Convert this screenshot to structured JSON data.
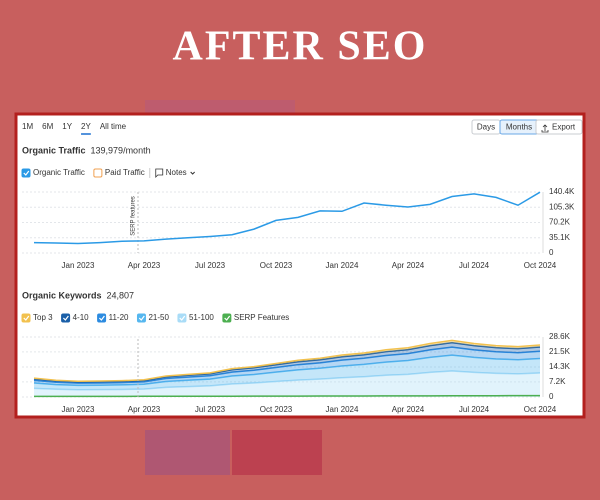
{
  "header": {
    "title": "AFTER SEO"
  },
  "toolbar": {
    "ranges": [
      "1M",
      "6M",
      "1Y",
      "2Y",
      "All time"
    ],
    "active_range": "2Y",
    "views": [
      "Days",
      "Months"
    ],
    "active_view": "Months",
    "export": "Export"
  },
  "chart_data": [
    {
      "type": "line",
      "title": "Organic Traffic",
      "total": "139,979/month",
      "categories": [
        null,
        null,
        "Jan 2023",
        null,
        null,
        "Apr 2023",
        null,
        null,
        "Jul 2023",
        null,
        null,
        "Oct 2023",
        null,
        null,
        "Jan 2024",
        null,
        null,
        "Apr 2024",
        null,
        null,
        "Jul 2024",
        null,
        null,
        "Oct 2024"
      ],
      "series": [
        {
          "name": "Organic Traffic",
          "color": "#2b9ae6",
          "values": [
            24000,
            23000,
            22000,
            24000,
            27000,
            28000,
            32000,
            35000,
            38000,
            42000,
            55000,
            75000,
            82000,
            97000,
            96000,
            115000,
            110000,
            106000,
            112000,
            130000,
            136000,
            128000,
            110000,
            139979
          ]
        }
      ],
      "toggles": [
        {
          "label": "Paid Traffic",
          "color": "#f0a050"
        }
      ],
      "notes": "Notes",
      "annotation": {
        "text": "SERP features",
        "category": "Apr 2023"
      },
      "ylim": [
        0,
        140400
      ],
      "yticks": [
        0,
        {
          "value": 35100,
          "label": "35.1K"
        },
        {
          "value": 70200,
          "label": "70.2K"
        },
        {
          "value": 105300,
          "label": "105.3K"
        },
        {
          "value": 140400,
          "label": "140.4K"
        }
      ],
      "grid": true
    },
    {
      "type": "area",
      "stacked": true,
      "title": "Organic Keywords",
      "total": "24,807",
      "categories": [
        null,
        null,
        "Jan 2023",
        null,
        null,
        "Apr 2023",
        null,
        null,
        "Jul 2023",
        null,
        null,
        "Oct 2023",
        null,
        null,
        "Jan 2024",
        null,
        null,
        "Apr 2024",
        null,
        null,
        "Jul 2024",
        null,
        null,
        "Oct 2024"
      ],
      "series": [
        {
          "name": "Top 3",
          "color": "#f2c14e",
          "values": [
            360,
            320,
            300,
            300,
            310,
            330,
            400,
            430,
            460,
            540,
            580,
            640,
            700,
            740,
            800,
            840,
            900,
            940,
            1020,
            1080,
            1020,
            980,
            960,
            992
          ]
        },
        {
          "name": "4-10",
          "color": "#1a5fa8",
          "values": [
            720,
            640,
            600,
            610,
            620,
            660,
            800,
            860,
            920,
            1080,
            1160,
            1280,
            1400,
            1480,
            1600,
            1680,
            1800,
            1880,
            2040,
            2160,
            2040,
            1960,
            1920,
            1985
          ]
        },
        {
          "name": "11-20",
          "color": "#2c8be0",
          "values": [
            1260,
            1120,
            1050,
            1060,
            1090,
            1150,
            1400,
            1510,
            1610,
            1890,
            2030,
            2240,
            2450,
            2590,
            2800,
            2940,
            3150,
            3290,
            3570,
            3780,
            3570,
            3430,
            3360,
            3473
          ]
        },
        {
          "name": "21-50",
          "color": "#56b7ef",
          "values": [
            2520,
            2240,
            2100,
            2130,
            2180,
            2300,
            2800,
            3020,
            3220,
            3780,
            4060,
            4480,
            4900,
            5180,
            5600,
            5880,
            6300,
            6580,
            7140,
            7560,
            7140,
            6860,
            6720,
            6946
          ]
        },
        {
          "name": "51-100",
          "color": "#a9dcf7",
          "values": [
            4140,
            3680,
            3450,
            3500,
            3590,
            3770,
            4600,
            4970,
            5290,
            6210,
            6670,
            7360,
            8050,
            8510,
            9200,
            9660,
            10350,
            10810,
            11730,
            12420,
            11730,
            11270,
            11040,
            11411
          ]
        },
        {
          "name": "SERP Features",
          "color": "#4caf50",
          "stack": false,
          "values": [
            300,
            300,
            300,
            310,
            320,
            330,
            340,
            350,
            360,
            380,
            400,
            420,
            440,
            460,
            480,
            500,
            520,
            540,
            560,
            580,
            600,
            620,
            640,
            660
          ]
        }
      ],
      "ylim": [
        0,
        28600
      ],
      "yticks": [
        0,
        {
          "value": 7200,
          "label": "7.2K"
        },
        {
          "value": 14300,
          "label": "14.3K"
        },
        {
          "value": 21500,
          "label": "21.5K"
        },
        {
          "value": 28600,
          "label": "28.6K"
        }
      ],
      "grid": true
    }
  ]
}
